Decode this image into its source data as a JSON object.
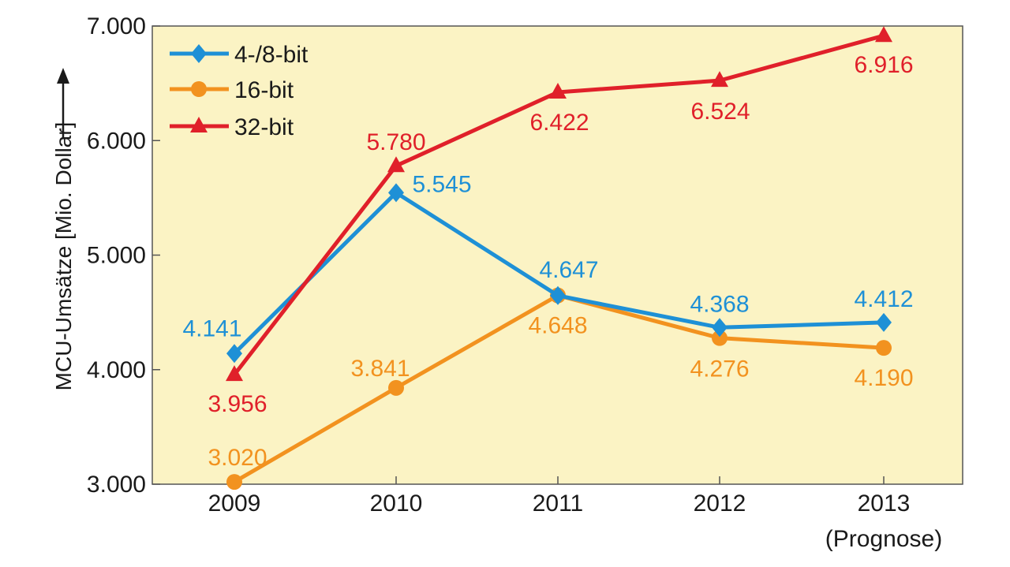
{
  "chart_data": {
    "type": "line",
    "ylabel": "MCU-Umsätze [Mio. Dollar]",
    "xlabel": "",
    "ylim": [
      3000,
      7000
    ],
    "yticks": [
      {
        "value": 3000,
        "label": "3.000"
      },
      {
        "value": 4000,
        "label": "4.000"
      },
      {
        "value": 5000,
        "label": "5.000"
      },
      {
        "value": 6000,
        "label": "6.000"
      },
      {
        "value": 7000,
        "label": "7.000"
      }
    ],
    "categories": [
      "2009",
      "2010",
      "2011",
      "2012",
      "2013"
    ],
    "category_sublabels": [
      "",
      "",
      "",
      "",
      "(Prognose)"
    ],
    "grid": false,
    "legend_position": "top-left",
    "plot_background": "#fbf3c4",
    "series": [
      {
        "name": "4-/8-bit",
        "color": "#1e90d6",
        "marker": "diamond",
        "values": [
          4141,
          5545,
          4647,
          4368,
          4412
        ],
        "labels": [
          "4.141",
          "5.545",
          "4.647",
          "4.368",
          "4.412"
        ]
      },
      {
        "name": "16-bit",
        "color": "#f2921f",
        "marker": "circle",
        "values": [
          3020,
          3841,
          4648,
          4276,
          4190
        ],
        "labels": [
          "3.020",
          "3.841",
          "4.648",
          "4.276",
          "4.190"
        ]
      },
      {
        "name": "32-bit",
        "color": "#e0202a",
        "marker": "triangle",
        "values": [
          3956,
          5780,
          6422,
          6524,
          6916
        ],
        "labels": [
          "3.956",
          "5.780",
          "6.422",
          "6.524",
          "6.916"
        ]
      }
    ]
  }
}
